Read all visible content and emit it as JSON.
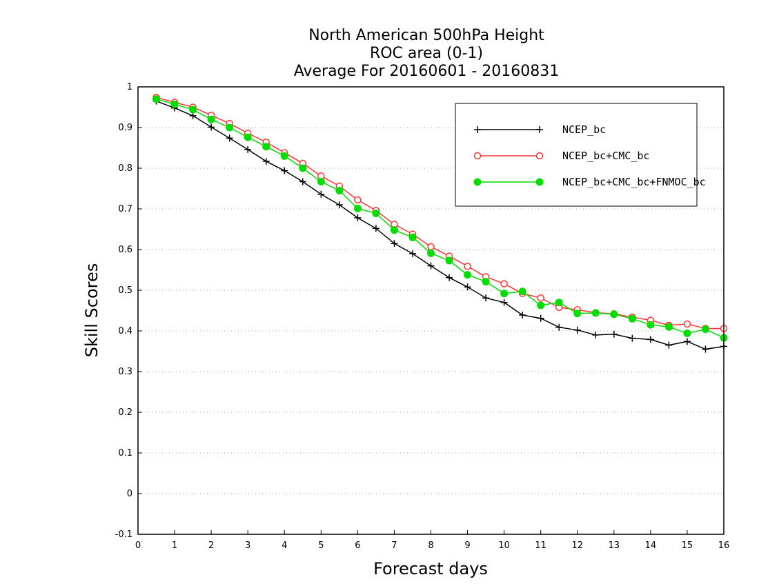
{
  "chart_data": {
    "type": "line",
    "title": "North American 500hPa Height",
    "subtitle": "ROC area (0-1)",
    "subtitle2": "Average For 20160601 - 20160831",
    "xlabel": "Forecast days",
    "ylabel": "Skill Scores",
    "xlim": [
      0,
      16
    ],
    "ylim": [
      -0.1,
      1
    ],
    "x_ticks": [
      "0",
      "1",
      "2",
      "3",
      "4",
      "5",
      "6",
      "7",
      "8",
      "9",
      "10",
      "11",
      "12",
      "13",
      "14",
      "15",
      "16"
    ],
    "y_ticks": [
      "-0.1",
      "0",
      "0.1",
      "0.2",
      "0.3",
      "0.4",
      "0.5",
      "0.6",
      "0.7",
      "0.8",
      "0.9",
      "1"
    ],
    "grid": "horizontal dotted",
    "legend_position": "top-right",
    "x": [
      0.5,
      1,
      1.5,
      2,
      2.5,
      3,
      3.5,
      4,
      4.5,
      5,
      5.5,
      6,
      6.5,
      7,
      7.5,
      8,
      8.5,
      9,
      9.5,
      10,
      10.5,
      11,
      11.5,
      12,
      12.5,
      13,
      13.5,
      14,
      14.5,
      15,
      15.5,
      16
    ],
    "series": [
      {
        "name": "NCEP_bc",
        "color": "#000000",
        "marker": "plus",
        "values": [
          0.965,
          0.948,
          0.929,
          0.901,
          0.874,
          0.846,
          0.817,
          0.794,
          0.767,
          0.736,
          0.71,
          0.678,
          0.652,
          0.615,
          0.59,
          0.56,
          0.531,
          0.508,
          0.481,
          0.47,
          0.439,
          0.431,
          0.409,
          0.402,
          0.39,
          0.392,
          0.382,
          0.379,
          0.365,
          0.374,
          0.355,
          0.362
        ]
      },
      {
        "name": "NCEP_bc+CMC_bc",
        "color": "#ff3333",
        "marker": "open-circle",
        "values": [
          0.974,
          0.962,
          0.95,
          0.93,
          0.91,
          0.886,
          0.864,
          0.838,
          0.812,
          0.781,
          0.756,
          0.722,
          0.696,
          0.662,
          0.638,
          0.607,
          0.584,
          0.559,
          0.533,
          0.516,
          0.492,
          0.481,
          0.458,
          0.452,
          0.445,
          0.442,
          0.434,
          0.426,
          0.414,
          0.417,
          0.406,
          0.406
        ]
      },
      {
        "name": "NCEP_bc+CMC_bc+FNMOC_bc",
        "color": "#00dd00",
        "marker": "filled-circle",
        "values": [
          0.97,
          0.957,
          0.944,
          0.92,
          0.9,
          0.876,
          0.853,
          0.83,
          0.8,
          0.767,
          0.745,
          0.701,
          0.689,
          0.648,
          0.63,
          0.591,
          0.573,
          0.538,
          0.521,
          0.492,
          0.497,
          0.463,
          0.47,
          0.443,
          0.444,
          0.441,
          0.43,
          0.415,
          0.41,
          0.394,
          0.404,
          0.383
        ]
      }
    ]
  }
}
